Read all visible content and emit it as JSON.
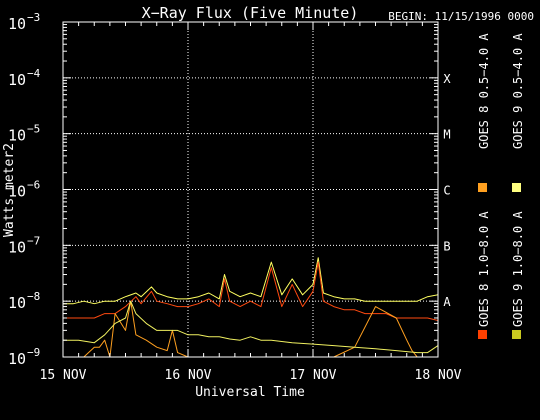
{
  "chart_data": {
    "type": "line",
    "title": "X−Ray Flux (Five Minute)",
    "begin_label": "BEGIN: 11/15/1996 0000",
    "xlabel": "Universal Time",
    "ylabel": "Watts meter2",
    "x_ticks": [
      "15 NOV",
      "16 NOV",
      "17 NOV",
      "18 NOV"
    ],
    "y_ticks": [
      {
        "base": "10",
        "exp": "−3",
        "value": 0.001
      },
      {
        "base": "10",
        "exp": "−4",
        "value": 0.0001
      },
      {
        "base": "10",
        "exp": "−5",
        "value": 1e-05
      },
      {
        "base": "10",
        "exp": "−6",
        "value": 1e-06
      },
      {
        "base": "10",
        "exp": "−7",
        "value": 1e-07
      },
      {
        "base": "10",
        "exp": "−8",
        "value": 1e-08
      },
      {
        "base": "10",
        "exp": "−9",
        "value": 1e-09
      }
    ],
    "y_scale": "log",
    "ylim": [
      1e-09,
      0.001
    ],
    "x_range_hours": [
      0,
      72
    ],
    "flare_classes": [
      {
        "label": "X",
        "value": 0.0001
      },
      {
        "label": "M",
        "value": 1e-05
      },
      {
        "label": "C",
        "value": 1e-06
      },
      {
        "label": "B",
        "value": 1e-07
      },
      {
        "label": "A",
        "value": 1e-08
      }
    ],
    "grid": true,
    "legend": [
      {
        "name": "GOES 8 1.0−8.0 A",
        "color": "#ff4000"
      },
      {
        "name": "GOES 8 0.5−4.0 A",
        "color": "#ffa020"
      },
      {
        "name": "GOES 9 1.0−8.0 A",
        "color": "#c8c820"
      },
      {
        "name": "GOES 9 0.5−4.0 A",
        "color": "#ffff80"
      }
    ],
    "series": [
      {
        "color": "#ffff60",
        "x": [
          0,
          2,
          4,
          6,
          8,
          10,
          12,
          14,
          15,
          17,
          18,
          20,
          22,
          24,
          26,
          28,
          30,
          31,
          32,
          34,
          36,
          38,
          40,
          42,
          44,
          46,
          48,
          49,
          50,
          52,
          54,
          56,
          58,
          60,
          62,
          64,
          66,
          68,
          70,
          72
        ],
        "y": [
          9e-09,
          9e-09,
          1e-08,
          9e-09,
          1e-08,
          1e-08,
          1.2e-08,
          1.4e-08,
          1.2e-08,
          1.8e-08,
          1.4e-08,
          1.2e-08,
          1.1e-08,
          1.1e-08,
          1.2e-08,
          1.4e-08,
          1.1e-08,
          3e-08,
          1.5e-08,
          1.2e-08,
          1.4e-08,
          1.2e-08,
          5e-08,
          1.3e-08,
          2.5e-08,
          1.3e-08,
          2e-08,
          6e-08,
          1.4e-08,
          1.2e-08,
          1.1e-08,
          1.1e-08,
          1e-08,
          1e-08,
          1e-08,
          1e-08,
          1e-08,
          1e-08,
          1.2e-08,
          1.3e-08
        ]
      },
      {
        "color": "#ff4a10",
        "x": [
          0,
          3,
          6,
          8,
          10,
          12,
          14,
          15,
          17,
          18,
          20,
          22,
          24,
          26,
          28,
          30,
          31,
          32,
          34,
          36,
          38,
          40,
          42,
          44,
          46,
          48,
          49,
          50,
          52,
          54,
          56,
          58,
          60,
          62,
          64,
          66,
          68,
          70,
          72
        ],
        "y": [
          5e-09,
          5e-09,
          5e-09,
          6e-09,
          6e-09,
          8e-09,
          1.2e-08,
          9e-09,
          1.5e-08,
          1e-08,
          9e-09,
          8e-09,
          8e-09,
          9e-09,
          1.1e-08,
          8e-09,
          2.5e-08,
          1e-08,
          8e-09,
          1e-08,
          8e-09,
          4e-08,
          8e-09,
          2e-08,
          8e-09,
          1.5e-08,
          5e-08,
          1e-08,
          8e-09,
          7e-09,
          7e-09,
          6e-09,
          6e-09,
          6e-09,
          5e-09,
          5e-09,
          5e-09,
          5e-09,
          4.5e-09
        ]
      },
      {
        "color": "#ffa020",
        "x": [
          0,
          4,
          6,
          7,
          8,
          9,
          10,
          12,
          13,
          14,
          16,
          18,
          20,
          21,
          22,
          24,
          26,
          28,
          30,
          32,
          36,
          40,
          44,
          48,
          52,
          56,
          60,
          64,
          66,
          67,
          68,
          70,
          72
        ],
        "y": [
          1e-09,
          1e-09,
          1.5e-09,
          1.5e-09,
          2e-09,
          1e-09,
          6e-09,
          3e-09,
          1e-08,
          2.5e-09,
          2e-09,
          1.5e-09,
          1.3e-09,
          3e-09,
          1.2e-09,
          1e-09,
          1e-09,
          1e-09,
          1e-09,
          1e-09,
          1e-09,
          1e-09,
          1e-09,
          1e-09,
          1e-09,
          1.5e-09,
          8e-09,
          5e-09,
          2e-09,
          1.3e-09,
          1e-09,
          1e-09,
          1e-09
        ]
      },
      {
        "color": "#f0f060",
        "x": [
          0,
          3,
          6,
          8,
          10,
          12,
          13,
          14,
          16,
          18,
          20,
          22,
          24,
          26,
          28,
          30,
          32,
          34,
          36,
          38,
          40,
          44,
          48,
          52,
          56,
          60,
          64,
          68,
          70,
          72
        ],
        "y": [
          2e-09,
          2e-09,
          1.8e-09,
          2.5e-09,
          4e-09,
          5e-09,
          1e-08,
          6e-09,
          4e-09,
          3e-09,
          3e-09,
          3e-09,
          2.5e-09,
          2.5e-09,
          2.3e-09,
          2.3e-09,
          2.1e-09,
          2e-09,
          2.3e-09,
          2e-09,
          2e-09,
          1.8e-09,
          1.7e-09,
          1.6e-09,
          1.5e-09,
          1.4e-09,
          1.3e-09,
          1.2e-09,
          1.2e-09,
          1.6e-09
        ]
      }
    ]
  }
}
